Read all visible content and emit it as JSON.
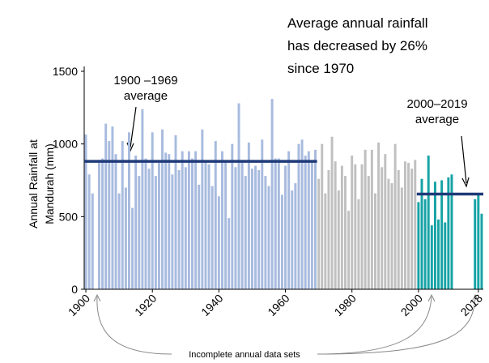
{
  "chart_data": {
    "type": "bar",
    "annotation": [
      "Average annual rainfall",
      "has decreased by 26%",
      "since 1970"
    ],
    "ylabel": [
      "Annual Rainfall at",
      "Mandurah (mm)"
    ],
    "note": "Incomplete annual data sets",
    "xlim": [
      1899.5,
      2019.5
    ],
    "xticks": [
      1900,
      1920,
      1940,
      1960,
      1980,
      2000,
      2018
    ],
    "ylim": [
      0,
      1500
    ],
    "yticks": [
      0,
      500,
      1000,
      1500
    ],
    "grid": false,
    "series": [
      {
        "color": "#a8bbdf",
        "x": [
          1900,
          1901,
          1902,
          1903,
          1904,
          1905,
          1906,
          1907,
          1908,
          1909,
          1910,
          1911,
          1912,
          1913,
          1914,
          1915,
          1916,
          1917,
          1918,
          1919,
          1920,
          1921,
          1922,
          1923,
          1924,
          1925,
          1926,
          1927,
          1928,
          1929,
          1930,
          1931,
          1932,
          1933,
          1934,
          1935,
          1936,
          1937,
          1938,
          1939,
          1940,
          1941,
          1942,
          1943,
          1944,
          1945,
          1946,
          1947,
          1948,
          1949,
          1950,
          1951,
          1952,
          1953,
          1954,
          1955,
          1956,
          1957,
          1958,
          1959,
          1960,
          1961,
          1962,
          1963,
          1964,
          1965,
          1966,
          1967,
          1968,
          1969
        ],
        "values": [
          1065,
          790,
          660,
          null,
          890,
          900,
          1140,
          1020,
          1120,
          930,
          660,
          1020,
          700,
          1080,
          560,
          920,
          780,
          1240,
          900,
          830,
          1080,
          780,
          870,
          1100,
          940,
          930,
          790,
          1060,
          820,
          950,
          840,
          950,
          900,
          950,
          720,
          1100,
          880,
          860,
          710,
          1020,
          640,
          950,
          880,
          490,
          1000,
          840,
          1280,
          880,
          780,
          1010,
          830,
          850,
          820,
          1030,
          780,
          710,
          1310,
          900,
          900,
          650,
          850,
          950,
          680,
          730,
          1000,
          1030,
          920,
          950,
          880,
          960
        ]
      },
      {
        "color": "#c0c0c0",
        "x": [
          1970,
          1971,
          1972,
          1973,
          1974,
          1975,
          1976,
          1977,
          1978,
          1979,
          1980,
          1981,
          1982,
          1983,
          1984,
          1985,
          1986,
          1987,
          1988,
          1989,
          1990,
          1991,
          1992,
          1993,
          1994,
          1995,
          1996,
          1997,
          1998,
          1999
        ],
        "values": [
          760,
          1000,
          660,
          820,
          1050,
          880,
          680,
          850,
          780,
          540,
          920,
          860,
          620,
          860,
          960,
          780,
          960,
          660,
          1010,
          840,
          930,
          760,
          730,
          1000,
          820,
          700,
          880,
          870,
          830,
          890
        ]
      },
      {
        "color": "#17a3a6",
        "x": [
          2000,
          2001,
          2002,
          2003,
          2004,
          2005,
          2006,
          2007,
          2008,
          2009,
          2010,
          2011,
          2012,
          2013,
          2014,
          2015,
          2016,
          2017,
          2018,
          2019
        ],
        "values": [
          600,
          760,
          620,
          920,
          440,
          740,
          480,
          750,
          460,
          770,
          790,
          null,
          null,
          null,
          null,
          null,
          null,
          620,
          650,
          520
        ]
      }
    ],
    "averages": [
      {
        "label": [
          "1900 –1969",
          "average"
        ],
        "value": 880,
        "x": [
          1900,
          1969
        ],
        "color": "#1f3a78"
      },
      {
        "label": [
          "2000–2019",
          "average"
        ],
        "value": 655,
        "x": [
          2000,
          2019
        ],
        "color": "#1f3a78"
      }
    ]
  }
}
